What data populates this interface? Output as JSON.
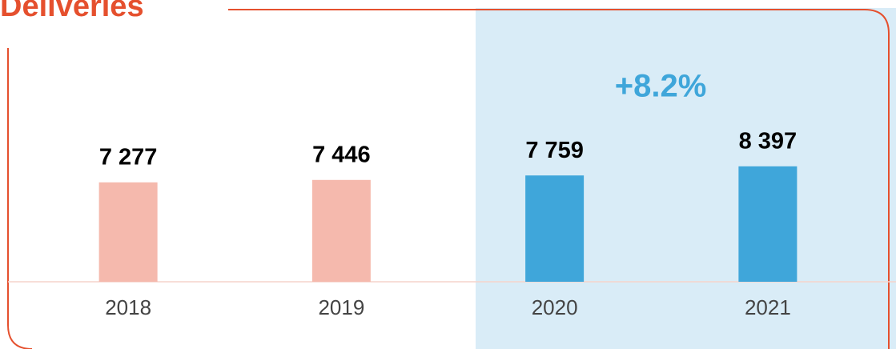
{
  "chart_data": {
    "type": "bar",
    "title": "Deliveries",
    "categories": [
      "2018",
      "2019",
      "2020",
      "2021"
    ],
    "values": [
      7277,
      7446,
      7759,
      8397
    ],
    "value_labels": [
      "7 277",
      "7 446",
      "7 759",
      "8 397"
    ],
    "colors": [
      "#f5b9ad",
      "#f5b9ad",
      "#3fa6da",
      "#3fa6da"
    ],
    "annotation": "+8.2%",
    "ylim": [
      333,
      9000
    ]
  }
}
